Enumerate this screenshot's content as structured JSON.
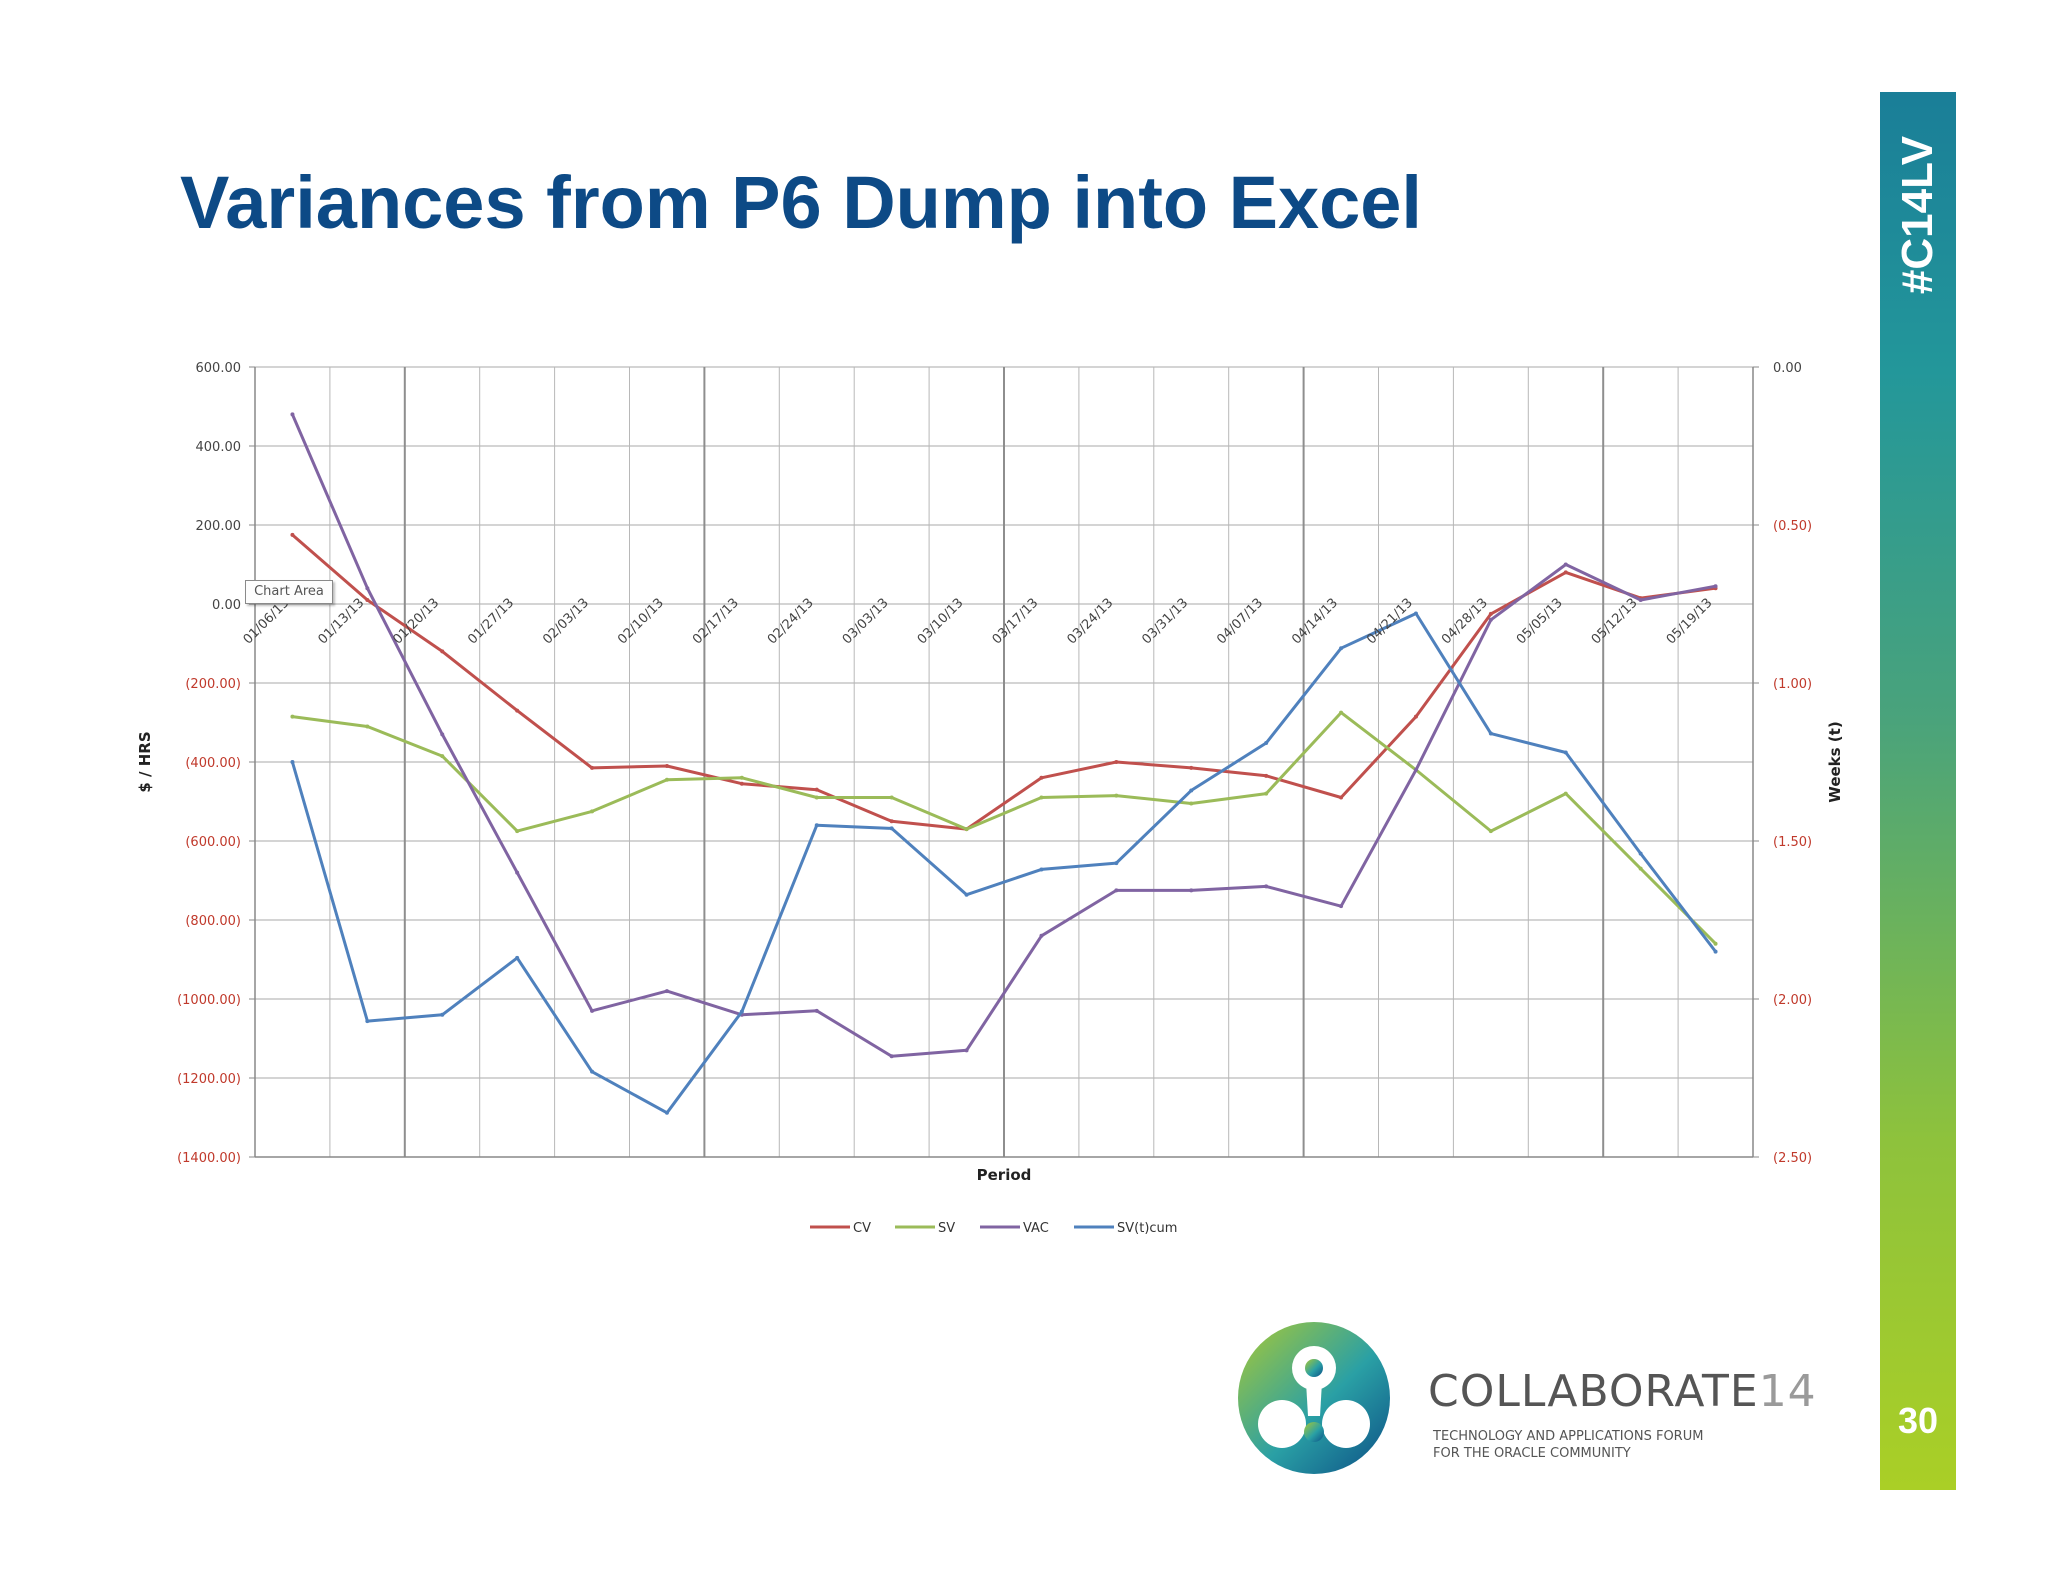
{
  "slide": {
    "title": "Variances from P6 Dump into Excel",
    "hashtag": "#C14LV",
    "page_number": "30"
  },
  "branding": {
    "name": "COLLABORATE",
    "number": "14",
    "tagline_line1": "TECHNOLOGY AND APPLICATIONS FORUM",
    "tagline_line2": "FOR THE ORACLE COMMUNITY"
  },
  "tooltip": {
    "label": "Chart Area"
  },
  "chart_data": {
    "type": "line",
    "xlabel": "Period",
    "ylabel": "$ / HRS",
    "y2label": "Weeks (t)",
    "categories": [
      "01/06/13",
      "01/13/13",
      "01/20/13",
      "01/27/13",
      "02/03/13",
      "02/10/13",
      "02/17/13",
      "02/24/13",
      "03/03/13",
      "03/10/13",
      "03/17/13",
      "03/24/13",
      "03/31/13",
      "04/07/13",
      "04/14/13",
      "04/21/13",
      "04/28/13",
      "05/05/13",
      "05/12/13",
      "05/19/13"
    ],
    "ylim": [
      -1400,
      600
    ],
    "y2lim": [
      -2.5,
      0
    ],
    "y_ticks": [
      "600.00",
      "400.00",
      "200.00",
      "0.00",
      "(200.00)",
      "(400.00)",
      "(600.00)",
      "(800.00)",
      "(1000.00)",
      "(1200.00)",
      "(1400.00)"
    ],
    "y2_ticks": [
      "0.00",
      "(0.50)",
      "(1.00)",
      "(1.50)",
      "(2.00)",
      "(2.50)"
    ],
    "grid": true,
    "legend_position": "bottom",
    "series": [
      {
        "name": "CV",
        "axis": "left",
        "color": "#c0504d",
        "values": [
          175,
          10,
          -120,
          -270,
          -415,
          -410,
          -455,
          -470,
          -550,
          -570,
          -440,
          -400,
          -415,
          -435,
          -490,
          -285,
          -25,
          80,
          15,
          40
        ]
      },
      {
        "name": "SV",
        "axis": "left",
        "color": "#9bbb59",
        "values": [
          -285,
          -310,
          -385,
          -575,
          -525,
          -445,
          -440,
          -490,
          -490,
          -570,
          -490,
          -485,
          -505,
          -480,
          -275,
          -420,
          -575,
          -480,
          -670,
          -860
        ]
      },
      {
        "name": "VAC",
        "axis": "left",
        "color": "#8064a2",
        "values": [
          480,
          40,
          -330,
          -680,
          -1030,
          -980,
          -1040,
          -1030,
          -1145,
          -1130,
          -840,
          -725,
          -725,
          -715,
          -765,
          -420,
          -40,
          100,
          10,
          45
        ]
      },
      {
        "name": "SV(t)cum",
        "axis": "right",
        "color": "#4f81bd",
        "values": [
          -1.25,
          -2.07,
          -2.05,
          -1.87,
          -2.23,
          -2.36,
          -2.04,
          -1.45,
          -1.46,
          -1.67,
          -1.59,
          -1.57,
          -1.34,
          -1.19,
          -0.89,
          -0.78,
          -1.16,
          -1.22,
          -1.54,
          -1.85
        ]
      }
    ]
  }
}
